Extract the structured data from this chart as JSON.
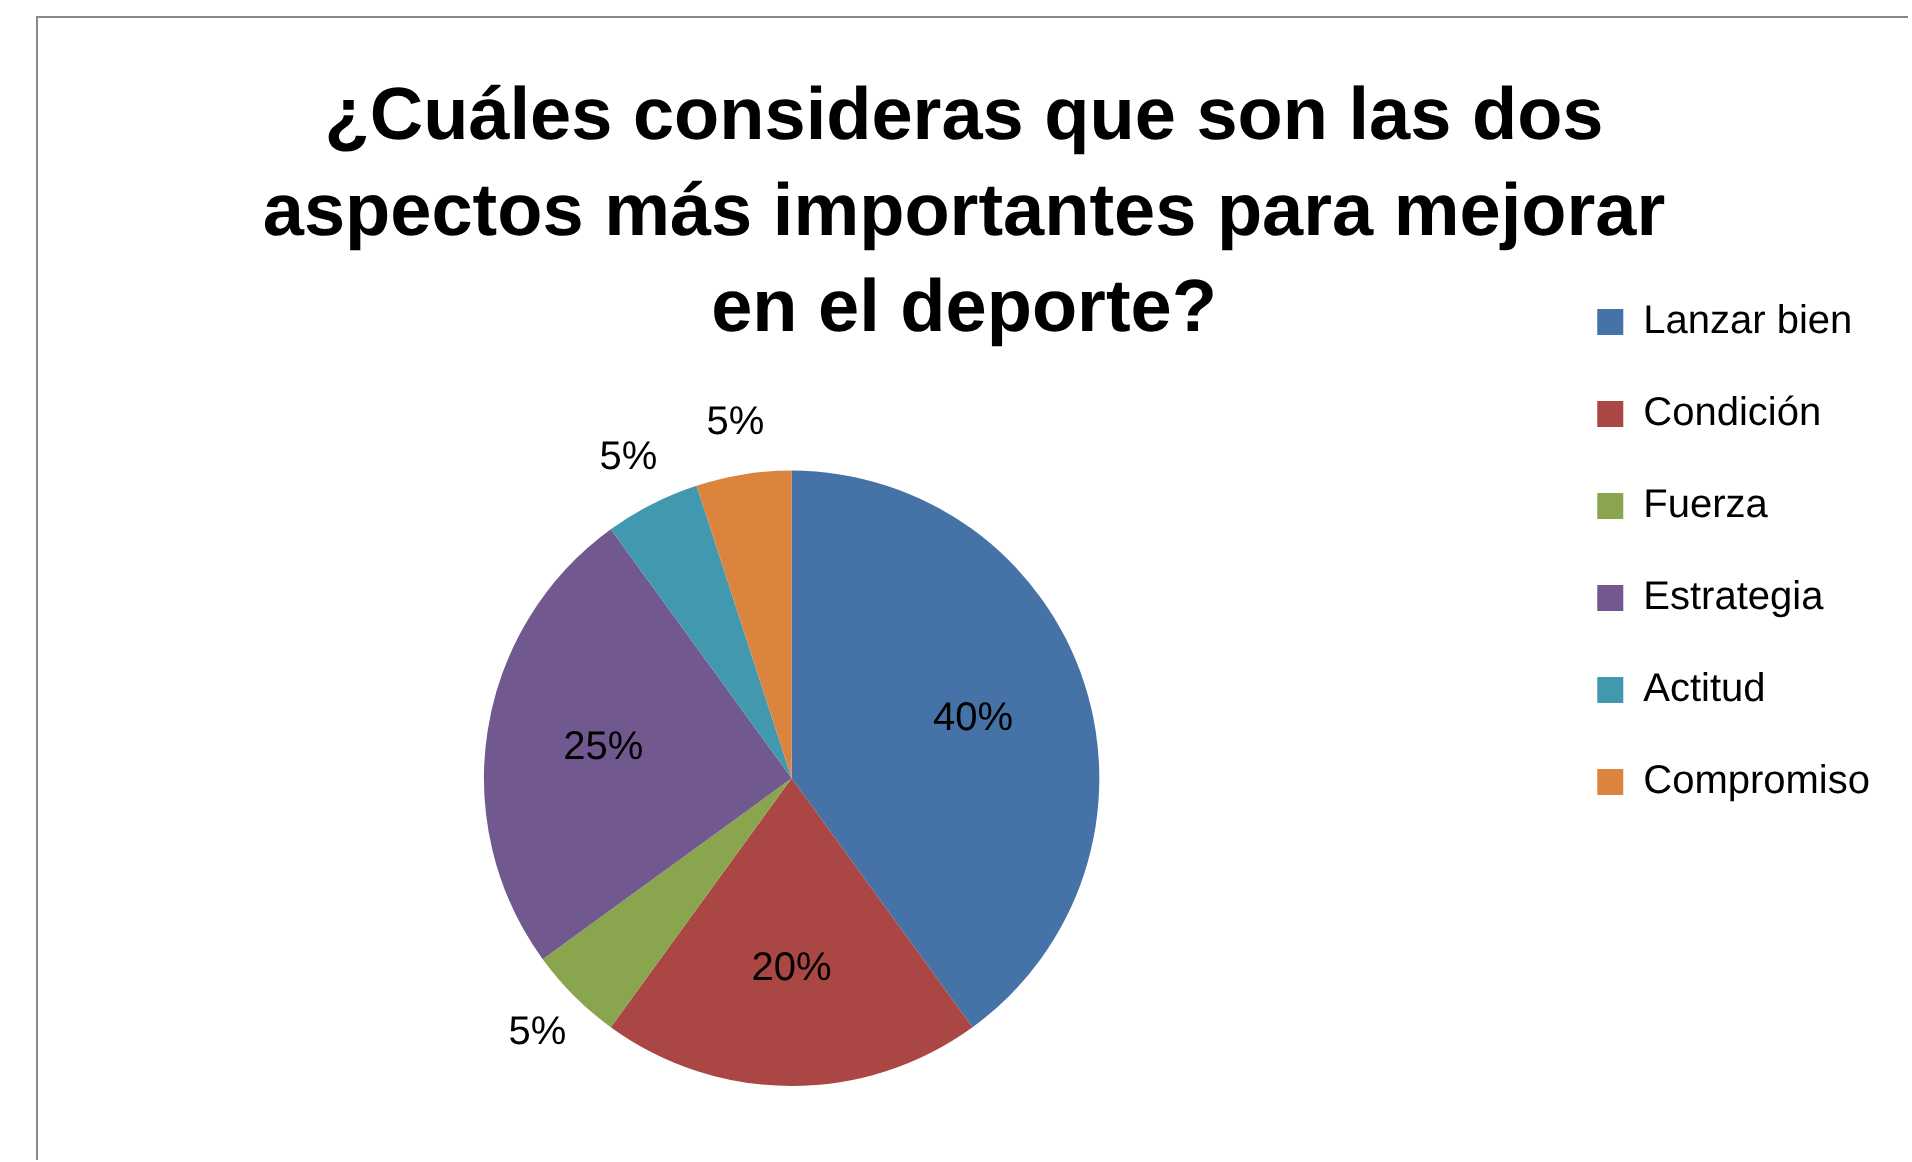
{
  "chart_data": {
    "type": "pie",
    "title": "¿Cuáles consideras que son las dos aspectos más importantes para mejorar en el deporte?",
    "categories": [
      "Lanzar bien",
      "Condición",
      "Fuerza",
      "Estrategia",
      "Actitud",
      "Compromiso"
    ],
    "values": [
      40,
      20,
      5,
      25,
      5,
      5
    ],
    "colors": [
      "#4572a7",
      "#aa4643",
      "#89a54e",
      "#71588f",
      "#4198af",
      "#db843d"
    ],
    "value_labels": [
      "40%",
      "20%",
      "5%",
      "25%",
      "5%",
      "5%"
    ],
    "legend": "right"
  }
}
